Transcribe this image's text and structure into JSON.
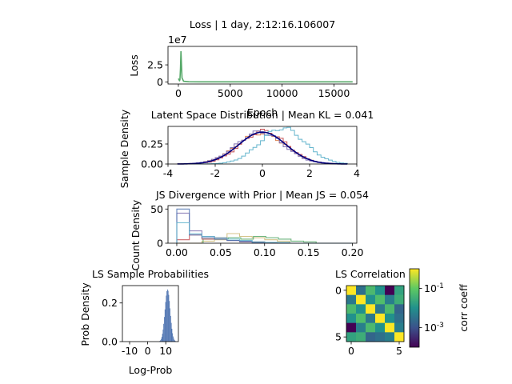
{
  "chart_data": [
    {
      "type": "line",
      "title": "Loss | 1 day, 2:12:16.106007",
      "xlabel": "Epoch",
      "ylabel": "Loss",
      "offset_text": "1e7",
      "xlim": [
        -1000,
        17200
      ],
      "ylim": [
        -0.3,
        5.2
      ],
      "xticks": [
        0,
        5000,
        10000,
        15000
      ],
      "yticks": [
        0,
        2.5
      ],
      "yticklabels": [
        "0",
        "2.5"
      ],
      "series": [
        {
          "color": "#55a868",
          "x": [
            0,
            100,
            150,
            200,
            250,
            350,
            500,
            1000,
            2000,
            5000,
            10000,
            15000,
            16800
          ],
          "y": [
            0.5,
            0.2,
            0.3,
            2.0,
            4.5,
            0.6,
            0.1,
            0.03,
            0.02,
            0.02,
            0.02,
            0.02,
            0.02
          ]
        }
      ]
    },
    {
      "type": "histogram",
      "title": "Latent Space Distribution | Mean KL = 0.041",
      "ylabel": "Sample Density",
      "xlim": [
        -4,
        4
      ],
      "ylim": [
        0,
        0.47
      ],
      "xticks": [
        -4,
        -2,
        0,
        2,
        4
      ],
      "yticks": [
        0,
        0.25
      ],
      "yticklabels": [
        "0.00",
        "0.25"
      ],
      "series": [
        {
          "color": "#dd8452",
          "mu": -0.05,
          "sigma": 1.03,
          "amp": 1
        },
        {
          "color": "#c44e52",
          "mu": 0.05,
          "sigma": 0.97,
          "amp": 1
        },
        {
          "color": "#8172b3",
          "mu": -0.1,
          "sigma": 1.0,
          "amp": 1
        },
        {
          "color": "#64b5cd",
          "mu": 0.85,
          "sigma": 0.95,
          "amp": 1.07
        },
        {
          "color": "#000080",
          "mu": 0,
          "sigma": 1.0,
          "amp": 1,
          "smooth": true
        }
      ]
    },
    {
      "type": "histogram",
      "title": "JS Divergence with Prior | Mean JS = 0.054",
      "ylabel": "Count Density",
      "xlim": [
        -0.01,
        0.205
      ],
      "ylim": [
        0,
        55
      ],
      "xticks": [
        0,
        0.05,
        0.1,
        0.15,
        0.2
      ],
      "xticklabels": [
        "0.00",
        "0.05",
        "0.10",
        "0.15",
        "0.20"
      ],
      "yticks": [
        0,
        50
      ],
      "series": [
        {
          "color": "#ccb974",
          "start": 0,
          "width": 0.0143,
          "heights": [
            0,
            0,
            3,
            5,
            14,
            10,
            8,
            5,
            3,
            0,
            0,
            0,
            0,
            0
          ]
        },
        {
          "color": "#55a868",
          "start": 0.03,
          "width": 0.0143,
          "heights": [
            6,
            6,
            8,
            6,
            10,
            8,
            6,
            3,
            2,
            0
          ]
        },
        {
          "color": "#c44e52",
          "start": 0,
          "width": 0.0143,
          "heights": [
            5,
            12,
            6,
            8,
            4,
            2,
            2,
            0,
            0,
            0,
            0,
            0,
            0,
            0
          ]
        },
        {
          "color": "#8172b3",
          "start": 0,
          "width": 0.0143,
          "heights": [
            44,
            18,
            10,
            6,
            4,
            2,
            0,
            0,
            0,
            0,
            0,
            0,
            0,
            0
          ]
        },
        {
          "color": "#4c72b0",
          "start": 0,
          "width": 0.0143,
          "heights": [
            50,
            12,
            8,
            6,
            4,
            3,
            1,
            1,
            0,
            0,
            0,
            0,
            0,
            0
          ]
        },
        {
          "color": "#64b5cd",
          "start": 0,
          "width": 0.0143,
          "heights": [
            30,
            14,
            10,
            8,
            6,
            4,
            2,
            1,
            1,
            0,
            0,
            0,
            0,
            0
          ]
        }
      ]
    },
    {
      "type": "histogram",
      "title": "LS Sample Probabilities",
      "xlabel": "Log-Prob",
      "ylabel": "Prob Density",
      "xlim": [
        -14,
        17
      ],
      "ylim": [
        0,
        0.29
      ],
      "xticks": [
        -10,
        0,
        10
      ],
      "yticks": [
        0,
        0.2
      ],
      "yticklabels": [
        "0.0",
        "0.2"
      ],
      "series": [
        {
          "color": "#4c72b0",
          "mu": 11,
          "sigma": 1.45,
          "peak": 0.27
        }
      ]
    },
    {
      "type": "heatmap",
      "title": "LS Correlation",
      "colorbar_label": "corr coeff",
      "colorbar_ticks": [
        "10^-1",
        "10^-3"
      ],
      "colorbar_exponents": [
        -1,
        -3
      ],
      "xticks": [
        0,
        5
      ],
      "yticks": [
        0,
        5
      ],
      "matrix": [
        [
          1.0,
          0.003,
          0.05,
          0.01,
          0.0001,
          0.02
        ],
        [
          0.004,
          1.0,
          0.01,
          0.06,
          0.005,
          0.03
        ],
        [
          0.05,
          0.01,
          1.0,
          0.004,
          0.05,
          0.002
        ],
        [
          0.01,
          0.06,
          0.004,
          1.0,
          0.01,
          0.003
        ],
        [
          0.0001,
          0.005,
          0.05,
          0.01,
          1.0,
          0.005
        ],
        [
          0.02,
          0.03,
          0.002,
          0.003,
          0.005,
          1.0
        ]
      ]
    }
  ]
}
